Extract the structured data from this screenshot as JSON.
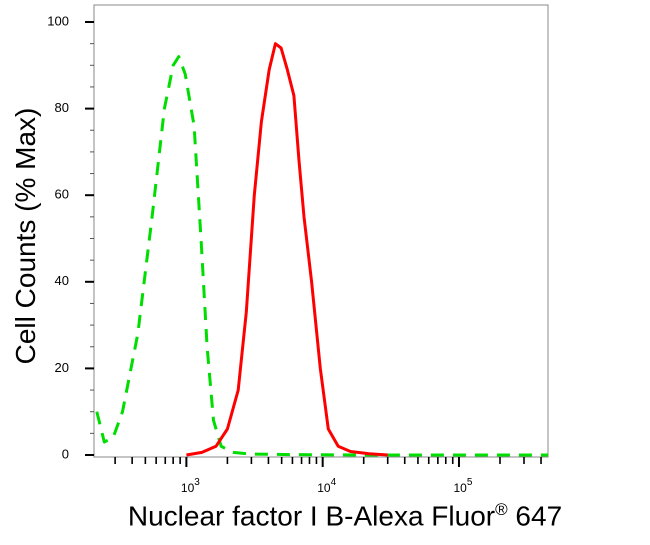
{
  "chart_data": {
    "type": "line",
    "title": "",
    "xlabel": "Nuclear factor I B-Alexa Fluor",
    "xlabel_sup": "®",
    "xlabel_suffix": " 647",
    "ylabel": "Cell Counts (% Max)",
    "x_scale": "log",
    "xlim": [
      210,
      450000
    ],
    "ylim": [
      0,
      100
    ],
    "yticks": [
      "0",
      "20",
      "40",
      "60",
      "80",
      "100"
    ],
    "xticks": [
      {
        "value": 1000,
        "base": "10",
        "exp": "3"
      },
      {
        "value": 10000,
        "base": "10",
        "exp": "4"
      },
      {
        "value": 100000,
        "base": "10",
        "exp": "5"
      }
    ],
    "grid": false,
    "legend": "none",
    "series": [
      {
        "color": "#00dd00",
        "style": "dashed",
        "points": [
          [
            220,
            10
          ],
          [
            250,
            3
          ],
          [
            290,
            4
          ],
          [
            340,
            10
          ],
          [
            440,
            28
          ],
          [
            560,
            55
          ],
          [
            690,
            80
          ],
          [
            800,
            90
          ],
          [
            880,
            92
          ],
          [
            980,
            88
          ],
          [
            1140,
            76
          ],
          [
            1280,
            50
          ],
          [
            1420,
            25
          ],
          [
            1580,
            8
          ],
          [
            1800,
            2
          ],
          [
            2200,
            0.6
          ],
          [
            3000,
            0.2
          ],
          [
            6000,
            0.1
          ],
          [
            20000,
            0
          ],
          [
            450000,
            0
          ]
        ]
      },
      {
        "color": "#ff0000",
        "style": "solid",
        "points": [
          [
            1000,
            0
          ],
          [
            1300,
            0.6
          ],
          [
            1650,
            2
          ],
          [
            2000,
            6
          ],
          [
            2400,
            15
          ],
          [
            2750,
            33
          ],
          [
            3150,
            60
          ],
          [
            3550,
            77
          ],
          [
            4050,
            89
          ],
          [
            4500,
            95
          ],
          [
            4950,
            94
          ],
          [
            5500,
            89
          ],
          [
            6150,
            83
          ],
          [
            6700,
            68
          ],
          [
            7300,
            55
          ],
          [
            8300,
            40
          ],
          [
            9600,
            20
          ],
          [
            11000,
            6
          ],
          [
            13000,
            2
          ],
          [
            16000,
            0.8
          ],
          [
            22000,
            0.3
          ],
          [
            30000,
            0
          ]
        ]
      }
    ]
  }
}
